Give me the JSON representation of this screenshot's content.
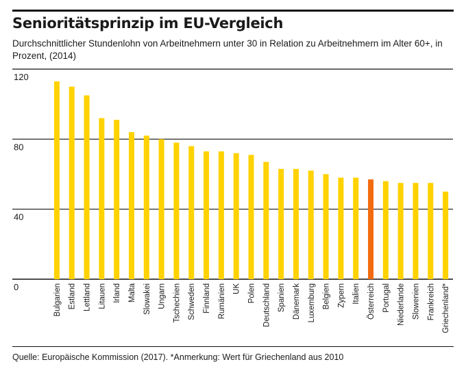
{
  "header": {
    "title": "Senioritätsprinzip im EU-Vergleich",
    "subtitle": "Durchschnittlicher Stundenlohn von Arbeitnehmern unter 30 in Relation zu Arbeitnehmern im Alter 60+, in Prozent, (2014)"
  },
  "footer": {
    "source": "Quelle: Europäische Kommission (2017). *Anmerkung: Wert für Griechenland aus 2010"
  },
  "colors": {
    "bar": "#FFD200",
    "highlight": "#F26B10",
    "gridline": "#111111"
  },
  "chart_data": {
    "type": "bar",
    "title": "Senioritätsprinzip im EU-Vergleich",
    "subtitle": "Durchschnittlicher Stundenlohn von Arbeitnehmern unter 30 in Relation zu Arbeitnehmern im Alter 60+, in Prozent, (2014)",
    "xlabel": "",
    "ylabel": "",
    "ylim": [
      0,
      120
    ],
    "yticks": [
      0,
      40,
      80,
      120
    ],
    "grid": true,
    "highlight_category": "Österreich",
    "categories": [
      "Bulgarien",
      "Estland",
      "Lettland",
      "Litauen",
      "Irland",
      "Malta",
      "Slowakei",
      "Ungarn",
      "Tschechien",
      "Schweden",
      "Finnland",
      "Rumänien",
      "UK",
      "Polen",
      "Deutschland",
      "Spanien",
      "Dänemark",
      "Luxemburg",
      "Belgien",
      "Zypern",
      "Italien",
      "Österreich",
      "Portugal",
      "Niederlande",
      "Slowenien",
      "Frankreich",
      "Griechenland*"
    ],
    "values": [
      113,
      110,
      105,
      92,
      91,
      84,
      82,
      80,
      78,
      76,
      73,
      73,
      72,
      71,
      67,
      63,
      63,
      62,
      60,
      58,
      58,
      57,
      56,
      55,
      55,
      55,
      50
    ]
  }
}
